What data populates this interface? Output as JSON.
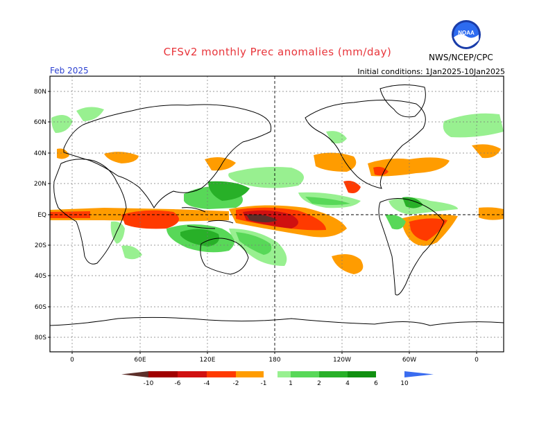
{
  "header": {
    "title": "CFSv2 monthly Prec anomalies (mm/day)",
    "month": "Feb 2025",
    "initial_conditions": "Initial conditions: 1Jan2025-10Jan2025",
    "agency": "NWS/NCEP/CPC",
    "logo_text": "NOAA"
  },
  "axes": {
    "lat_labels": [
      "80N",
      "60N",
      "40N",
      "20N",
      "EQ",
      "20S",
      "40S",
      "60S",
      "80S"
    ],
    "lon_labels": [
      "0",
      "60E",
      "120E",
      "180",
      "120W",
      "60W",
      "0"
    ]
  },
  "colorbar": {
    "tick_labels": [
      "-10",
      "-6",
      "-4",
      "-2",
      "-1",
      "1",
      "2",
      "4",
      "6",
      "10"
    ],
    "colors": [
      "#5c2f2a",
      "#a00000",
      "#d01010",
      "#ff3a00",
      "#ff9c00",
      "#ffffff",
      "#98f090",
      "#58d858",
      "#28b028",
      "#109010",
      "#3a6cf0"
    ]
  },
  "colors": {
    "title": "#e8343a",
    "month": "#2a3fd0"
  }
}
